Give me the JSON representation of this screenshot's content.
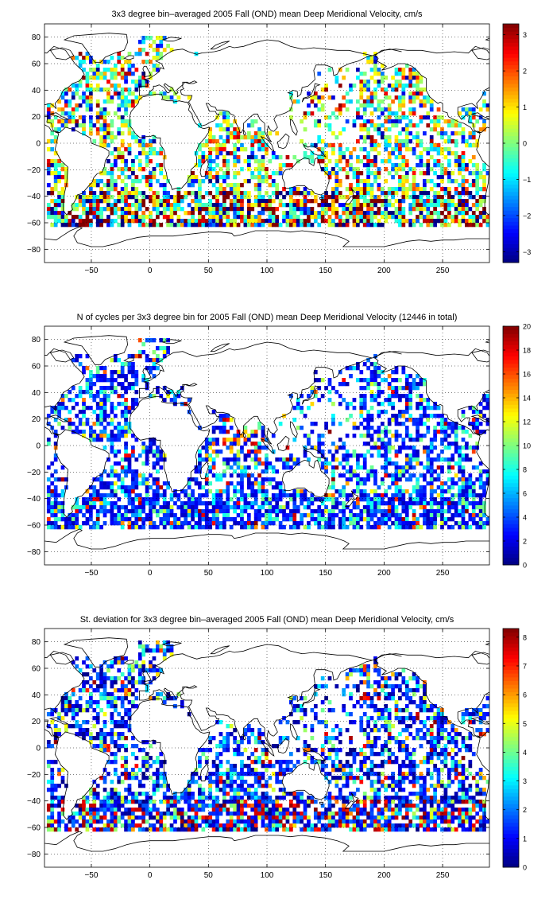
{
  "chart_data": [
    {
      "type": "heatmap",
      "title": "3x3 degree bin–averaged 2005 Fall (OND) mean Deep Meridional Velocity, cm/s",
      "xlabel": "",
      "ylabel": "",
      "xlim": [
        -90,
        290
      ],
      "ylim": [
        -90,
        90
      ],
      "x_ticks": [
        -50,
        0,
        50,
        100,
        150,
        200,
        250
      ],
      "y_ticks": [
        -80,
        -60,
        -40,
        -20,
        0,
        20,
        40,
        60,
        80
      ],
      "grid": true,
      "grid_style": "dotted",
      "colormap": "jet",
      "colorbar": {
        "min": -3.3,
        "max": 3.3,
        "ticks": [
          -3,
          -2,
          -1,
          0,
          1,
          2,
          3
        ]
      },
      "bin_size_deg": 3,
      "field": "signed_velocity",
      "seed": 17
    },
    {
      "type": "heatmap",
      "title": "N of cycles per 3x3 degree bin for 2005 Fall (OND) mean Deep Meridional Velocity (12446 in total)",
      "xlabel": "",
      "ylabel": "",
      "xlim": [
        -90,
        290
      ],
      "ylim": [
        -90,
        90
      ],
      "x_ticks": [
        -50,
        0,
        50,
        100,
        150,
        200,
        250
      ],
      "y_ticks": [
        -80,
        -60,
        -40,
        -20,
        0,
        20,
        40,
        60,
        80
      ],
      "grid": true,
      "grid_style": "dotted",
      "colormap": "jet",
      "colorbar": {
        "min": 0,
        "max": 20,
        "ticks": [
          0,
          2,
          4,
          6,
          8,
          10,
          12,
          14,
          16,
          18,
          20
        ]
      },
      "bin_size_deg": 3,
      "total_cycles": 12446,
      "field": "counts",
      "seed": 29
    },
    {
      "type": "heatmap",
      "title": "St. deviation for 3x3 degree bin–averaged 2005 Fall (OND) mean Deep Meridional Velocity, cm/s",
      "xlabel": "",
      "ylabel": "",
      "xlim": [
        -90,
        290
      ],
      "ylim": [
        -90,
        90
      ],
      "x_ticks": [
        -50,
        0,
        50,
        100,
        150,
        200,
        250
      ],
      "y_ticks": [
        -80,
        -60,
        -40,
        -20,
        0,
        20,
        40,
        60,
        80
      ],
      "grid": true,
      "grid_style": "dotted",
      "colormap": "jet",
      "colorbar": {
        "min": 0,
        "max": 8.3,
        "ticks": [
          0,
          1,
          2,
          3,
          4,
          5,
          6,
          7,
          8
        ]
      },
      "bin_size_deg": 3,
      "field": "stdev",
      "seed": 43
    }
  ]
}
